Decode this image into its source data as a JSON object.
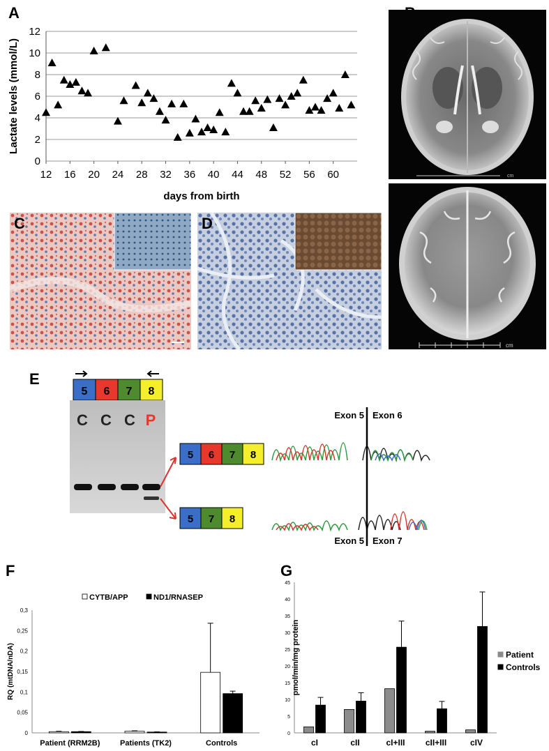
{
  "panels": {
    "A": "A",
    "B": "B",
    "C": "C",
    "D": "D",
    "E": "E",
    "F": "F",
    "G": "G"
  },
  "panel_e": {
    "primer_boxes": [
      "5",
      "6",
      "7",
      "8"
    ],
    "lane_labels": [
      "C",
      "C",
      "C",
      "P"
    ],
    "product_long": [
      "5",
      "6",
      "7",
      "8"
    ],
    "product_short": [
      "5",
      "7",
      "8"
    ],
    "seq_top_left": "Exon 5",
    "seq_top_right": "Exon 6",
    "seq_bottom_left": "Exon 5",
    "seq_bottom_right": "Exon 7",
    "exon_colors": {
      "5": "#3b6fc7",
      "6": "#e8372c",
      "7": "#4e8a2e",
      "8": "#f5ef2b"
    }
  },
  "panel_b": {
    "scale_unit_top": "cm",
    "scale_unit_bottom": "cm"
  },
  "chart_data": [
    {
      "id": "A",
      "type": "scatter",
      "title": "",
      "xlabel": "days from birth",
      "ylabel": "Lactate levels (mmol/L)",
      "xlim": [
        12,
        64
      ],
      "ylim": [
        0,
        12
      ],
      "xticks": [
        12,
        16,
        20,
        24,
        28,
        32,
        36,
        40,
        44,
        48,
        52,
        56,
        60
      ],
      "yticks": [
        0,
        2,
        4,
        6,
        8,
        10,
        12
      ],
      "grid": true,
      "marker": "triangle",
      "x": [
        12,
        13,
        14,
        15,
        16,
        17,
        18,
        19,
        20,
        22,
        24,
        25,
        27,
        28,
        29,
        30,
        31,
        32,
        33,
        34,
        35,
        36,
        37,
        38,
        39,
        40,
        41,
        42,
        43,
        44,
        45,
        46,
        47,
        48,
        49,
        50,
        51,
        52,
        53,
        54,
        55,
        56,
        57,
        58,
        59,
        60,
        61,
        62,
        63
      ],
      "y": [
        4.5,
        9.1,
        5.2,
        7.5,
        7.1,
        7.3,
        6.5,
        6.3,
        10.2,
        10.5,
        3.7,
        5.6,
        7.0,
        5.4,
        6.3,
        5.8,
        4.6,
        3.8,
        5.3,
        2.2,
        5.3,
        2.6,
        3.9,
        2.7,
        3.1,
        2.9,
        4.5,
        2.7,
        7.2,
        6.3,
        4.6,
        4.6,
        5.6,
        4.9,
        5.7,
        3.1,
        5.8,
        5.2,
        6.0,
        6.3,
        7.5,
        4.7,
        5.0,
        4.7,
        5.8,
        6.3,
        4.9,
        8.0,
        5.2
      ]
    },
    {
      "id": "F",
      "type": "bar",
      "title": "",
      "xlabel": "",
      "ylabel": "RQ (mtDNA/nDA)",
      "categories": [
        "Patient (RRM2B)",
        "Patients (TK2)",
        "Controls"
      ],
      "series": [
        {
          "name": "CYTB/APP",
          "color": "#ffffff",
          "values": [
            0.003,
            0.004,
            0.148
          ],
          "errors": [
            0.001,
            0.001,
            0.12
          ]
        },
        {
          "name": "ND1/RNASEP",
          "color": "#000000",
          "values": [
            0.003,
            0.002,
            0.096
          ],
          "errors": [
            0.0005,
            0.0005,
            0.006
          ]
        }
      ],
      "ylim": [
        0,
        0.3
      ],
      "yticks": [
        "0",
        "0,05",
        "0,1",
        "0,15",
        "0,2",
        "0,25",
        "0,3"
      ],
      "legend": "top"
    },
    {
      "id": "G",
      "type": "bar",
      "title": "",
      "xlabel": "",
      "ylabel": "pmol/min/mg protein",
      "categories": [
        "cI",
        "cII",
        "cI+III",
        "cII+III",
        "cIV"
      ],
      "series": [
        {
          "name": "Patient",
          "color": "#8c8c8c",
          "values": [
            1.8,
            7.0,
            13.2,
            0.5,
            0.9
          ],
          "errors": [
            0,
            0,
            0,
            0,
            0
          ]
        },
        {
          "name": "Controls",
          "color": "#000000",
          "values": [
            8.3,
            9.5,
            25.6,
            7.2,
            31.8
          ],
          "errors": [
            2.3,
            2.5,
            7.8,
            2.2,
            10.3
          ]
        }
      ],
      "ylim": [
        0,
        45
      ],
      "yticks": [
        "0",
        "5",
        "10",
        "15",
        "20",
        "25",
        "30",
        "35",
        "40",
        "45"
      ],
      "legend": "right"
    }
  ]
}
